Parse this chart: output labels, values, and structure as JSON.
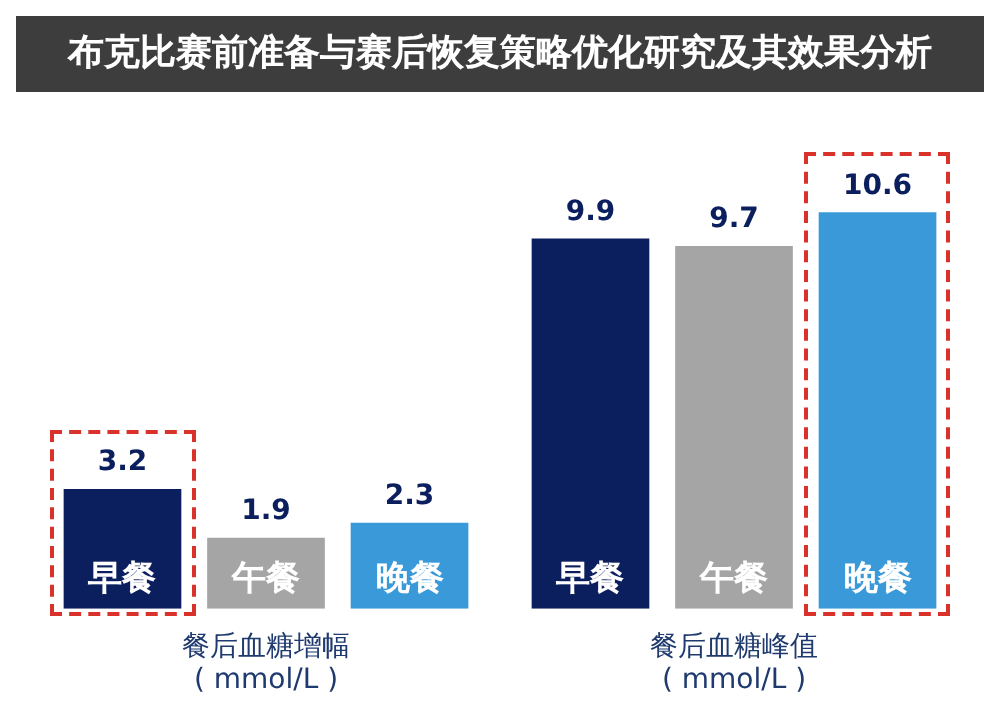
{
  "chart_data": {
    "type": "bar",
    "title": "布克比赛前准备与赛后恢复策略优化研究及其效果分析",
    "categories": [
      "餐后血糖增幅\n( mmol/L )",
      "餐后血糖峰值\n( mmol/L )"
    ],
    "series": [
      {
        "name": "早餐",
        "color": "#0b1f5e",
        "values": [
          3.2,
          9.9
        ]
      },
      {
        "name": "午餐",
        "color": "#a5a5a5",
        "values": [
          1.9,
          9.7
        ]
      },
      {
        "name": "晚餐",
        "color": "#3a9ad9",
        "values": [
          2.3,
          10.6
        ]
      }
    ],
    "data_labels": true,
    "grid": false,
    "legend": false
  }
}
